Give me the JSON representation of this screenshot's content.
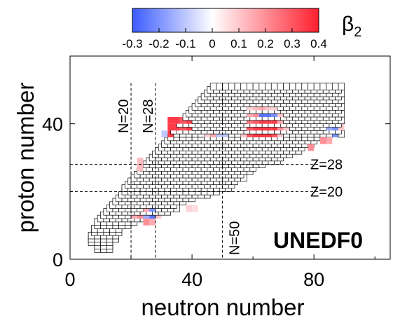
{
  "chart_data": {
    "type": "heatmap",
    "title": "",
    "xlabel": "neutron number",
    "ylabel": "proton number",
    "xlim": [
      0,
      105
    ],
    "ylim": [
      0,
      60
    ],
    "x_ticks": [
      "0",
      "40",
      "80"
    ],
    "y_ticks": [
      "0",
      "40"
    ],
    "colorbar": {
      "label": "β2",
      "range": [
        -0.3,
        0.4
      ],
      "ticks": [
        "-0.3",
        "-0.2",
        "-0.1",
        "0",
        "0.1",
        "0.2",
        "0.3",
        "0.4"
      ],
      "colors": {
        "negative": "#3b5bff",
        "zero": "#ffffff",
        "positive": "#ff1f2e"
      }
    },
    "model_label": "UNEDF0",
    "magic_lines": [
      {
        "orientation": "vertical",
        "value": 20,
        "label": "N=20"
      },
      {
        "orientation": "vertical",
        "value": 28,
        "label": "N=28"
      },
      {
        "orientation": "vertical",
        "value": 50,
        "label": "N=50"
      },
      {
        "orientation": "horizontal",
        "value": 28,
        "label": "Z=28"
      },
      {
        "orientation": "horizontal",
        "value": 20,
        "label": "Z=20"
      }
    ],
    "grid_rows": [
      [
        2,
        8,
        12
      ],
      [
        3,
        8,
        12
      ],
      [
        4,
        6,
        12
      ],
      [
        5,
        6,
        14
      ],
      [
        6,
        6,
        15
      ],
      [
        7,
        7,
        16
      ],
      [
        8,
        7,
        16
      ],
      [
        9,
        8,
        18
      ],
      [
        10,
        8,
        20
      ],
      [
        11,
        9,
        26
      ],
      [
        12,
        10,
        28
      ],
      [
        13,
        11,
        32
      ],
      [
        14,
        12,
        34
      ],
      [
        15,
        13,
        34
      ],
      [
        16,
        14,
        36
      ],
      [
        17,
        15,
        40
      ],
      [
        18,
        16,
        44
      ],
      [
        19,
        17,
        48
      ],
      [
        20,
        17,
        52
      ],
      [
        21,
        18,
        52
      ],
      [
        22,
        19,
        54
      ],
      [
        23,
        20,
        56
      ],
      [
        24,
        21,
        56
      ],
      [
        25,
        22,
        58
      ],
      [
        26,
        23,
        60
      ],
      [
        27,
        24,
        62
      ],
      [
        28,
        25,
        68
      ],
      [
        29,
        26,
        68
      ],
      [
        30,
        27,
        72
      ],
      [
        31,
        28,
        74
      ],
      [
        32,
        29,
        76
      ],
      [
        33,
        30,
        78
      ],
      [
        34,
        31,
        80
      ],
      [
        35,
        32,
        82
      ],
      [
        36,
        32,
        88
      ],
      [
        37,
        33,
        88
      ],
      [
        38,
        34,
        88
      ],
      [
        39,
        35,
        88
      ],
      [
        40,
        36,
        88
      ],
      [
        41,
        37,
        88
      ],
      [
        42,
        38,
        88
      ],
      [
        43,
        39,
        88
      ],
      [
        44,
        40,
        88
      ],
      [
        45,
        41,
        88
      ],
      [
        46,
        42,
        88
      ],
      [
        47,
        43,
        88
      ],
      [
        48,
        44,
        88
      ],
      [
        49,
        45,
        88
      ],
      [
        50,
        46,
        88
      ]
    ],
    "deformed_cells": [
      [
        11,
        10,
        0.15
      ],
      [
        11,
        12,
        0.15
      ],
      [
        11,
        14,
        0.12
      ],
      [
        11,
        16,
        0.1
      ],
      [
        10,
        24,
        0.2
      ],
      [
        10,
        26,
        0.15
      ],
      [
        12,
        20,
        0.15
      ],
      [
        12,
        22,
        0.2
      ],
      [
        12,
        24,
        -0.15
      ],
      [
        12,
        26,
        -0.25
      ],
      [
        12,
        28,
        0.1
      ],
      [
        14,
        24,
        0.15
      ],
      [
        14,
        26,
        -0.2
      ],
      [
        14,
        38,
        0.08
      ],
      [
        14,
        40,
        0.06
      ],
      [
        20,
        48,
        -0.25
      ],
      [
        20,
        50,
        -0.2
      ],
      [
        22,
        38,
        0.08
      ],
      [
        22,
        40,
        0.1
      ],
      [
        22,
        42,
        0.1
      ],
      [
        22,
        44,
        0.12
      ],
      [
        22,
        46,
        0.15
      ],
      [
        22,
        48,
        0.1
      ],
      [
        24,
        40,
        0.08
      ],
      [
        24,
        42,
        0.1
      ],
      [
        24,
        44,
        0.15
      ],
      [
        24,
        46,
        0.12
      ],
      [
        24,
        48,
        0.1
      ],
      [
        24,
        50,
        -0.1
      ],
      [
        26,
        22,
        0.12
      ],
      [
        26,
        24,
        0.15
      ],
      [
        28,
        22,
        0.12
      ],
      [
        32,
        72,
        0.15
      ],
      [
        32,
        74,
        0.2
      ],
      [
        32,
        76,
        0.2
      ],
      [
        32,
        78,
        0.2
      ],
      [
        34,
        76,
        0.15
      ],
      [
        34,
        78,
        0.2
      ],
      [
        34,
        80,
        0.25
      ],
      [
        34,
        82,
        0.2
      ],
      [
        34,
        84,
        0.15
      ],
      [
        36,
        86,
        -0.2
      ],
      [
        34,
        46,
        0.06
      ],
      [
        34,
        48,
        0.1
      ],
      [
        34,
        50,
        -0.08
      ],
      [
        36,
        44,
        0.08
      ],
      [
        36,
        46,
        0.15
      ],
      [
        36,
        48,
        -0.1
      ],
      [
        36,
        50,
        -0.1
      ],
      [
        34,
        58,
        -0.15
      ],
      [
        34,
        60,
        -0.25
      ],
      [
        34,
        62,
        -0.25
      ],
      [
        34,
        64,
        -0.2
      ],
      [
        34,
        66,
        0.1
      ],
      [
        36,
        56,
        0.1
      ],
      [
        36,
        58,
        0.3
      ],
      [
        36,
        60,
        0.35
      ],
      [
        36,
        62,
        0.35
      ],
      [
        36,
        64,
        0.35
      ],
      [
        36,
        66,
        0.3
      ],
      [
        36,
        68,
        0.1
      ],
      [
        38,
        32,
        0.35
      ],
      [
        38,
        34,
        0.35
      ],
      [
        38,
        36,
        0.3
      ],
      [
        38,
        38,
        0.35
      ],
      [
        38,
        58,
        0.3
      ],
      [
        38,
        60,
        0.35
      ],
      [
        38,
        62,
        0.35
      ],
      [
        38,
        64,
        0.35
      ],
      [
        38,
        66,
        0.35
      ],
      [
        38,
        68,
        0.2
      ],
      [
        38,
        70,
        0.1
      ],
      [
        36,
        30,
        -0.1
      ],
      [
        36,
        32,
        0.35
      ],
      [
        40,
        32,
        0.35
      ],
      [
        40,
        34,
        0.35
      ],
      [
        40,
        36,
        0.3
      ],
      [
        40,
        38,
        0.35
      ],
      [
        40,
        58,
        0.25
      ],
      [
        40,
        60,
        0.3
      ],
      [
        40,
        62,
        0.35
      ],
      [
        40,
        64,
        0.35
      ],
      [
        40,
        66,
        0.35
      ],
      [
        40,
        68,
        0.15
      ],
      [
        38,
        84,
        -0.15
      ],
      [
        38,
        86,
        -0.2
      ],
      [
        38,
        88,
        0.1
      ],
      [
        42,
        58,
        0.15
      ],
      [
        42,
        60,
        0.2
      ],
      [
        42,
        62,
        -0.25
      ],
      [
        42,
        64,
        -0.25
      ],
      [
        42,
        66,
        -0.2
      ],
      [
        42,
        68,
        0.1
      ],
      [
        44,
        58,
        0.08
      ],
      [
        44,
        60,
        0.12
      ],
      [
        44,
        62,
        0.15
      ],
      [
        44,
        64,
        0.1
      ],
      [
        44,
        66,
        0.08
      ]
    ]
  }
}
